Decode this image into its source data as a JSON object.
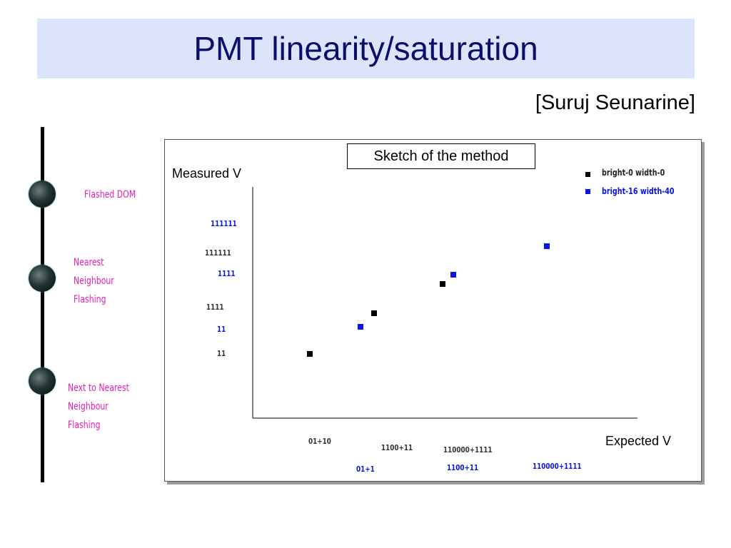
{
  "slide": {
    "title": "PMT linearity/saturation",
    "author": "[Suruj Seunarine]"
  },
  "dom_labels": [
    "Flashed DOM",
    "Nearest\nNeighbour\nFlashing",
    "Next to Nearest\nNeighbour\nFlashing"
  ],
  "colors": {
    "title_bg": "#dce4fb",
    "title_text": "#0d0d6b",
    "label_pink": "#e81eb4",
    "series_black": "#000000",
    "series_blue": "#0a14e6"
  },
  "chart_data": {
    "type": "scatter",
    "annotation": "Sketch of the method",
    "xlabel": "Expected V",
    "ylabel": "Measured V",
    "legend_position": "top-right",
    "grid": false,
    "series": [
      {
        "name": "bright-0 width-0",
        "color": "#000000",
        "points": [
          {
            "x": "01+10",
            "y": "11"
          },
          {
            "x": "1100+11",
            "y": "1111"
          },
          {
            "x": "110000+1111",
            "y": "111111"
          }
        ]
      },
      {
        "name": "bright-16 width-40",
        "color": "#0a14e6",
        "points": [
          {
            "x": "01+1",
            "y": "11"
          },
          {
            "x": "1100+11",
            "y": "1111"
          },
          {
            "x": "110000+1111",
            "y": "111111"
          }
        ]
      }
    ]
  }
}
